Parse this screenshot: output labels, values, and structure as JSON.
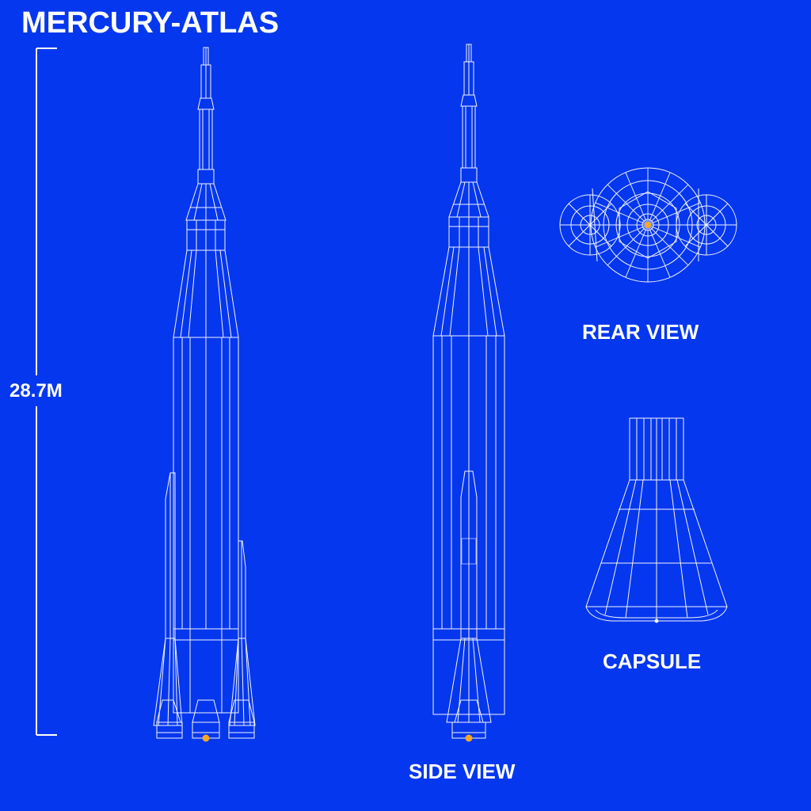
{
  "title": "MERCURY-ATLAS",
  "height_label": "28.7M",
  "views": {
    "rear": "REAR VIEW",
    "capsule": "CAPSULE",
    "side": "SIDE VIEW"
  },
  "colors": {
    "background": "#0537EE",
    "lines": "#FFFFFF",
    "accent": "#F5A623"
  }
}
